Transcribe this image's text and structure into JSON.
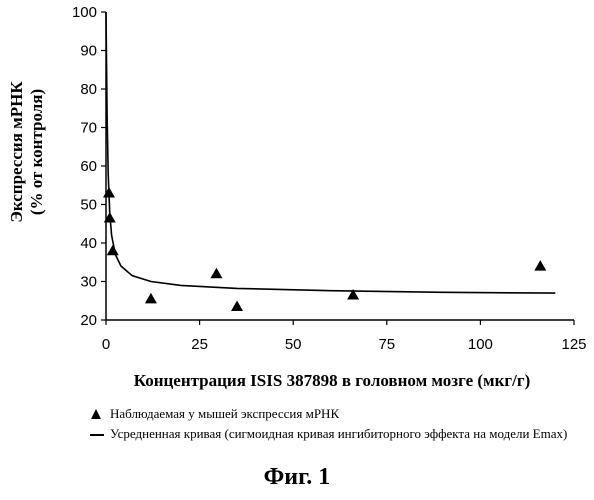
{
  "chart_data": {
    "type": "scatter",
    "xlabel": "Концентрация ISIS 387898 в головном мозге (мкг/г)",
    "ylabel_line1": "Экспрессия мРНК",
    "ylabel_line2": "(% от контроля)",
    "xlim": [
      0,
      125
    ],
    "ylim": [
      20,
      100
    ],
    "x_ticks": [
      "0",
      "25",
      "50",
      "75",
      "100",
      "125"
    ],
    "y_ticks": [
      "20",
      "30",
      "40",
      "50",
      "60",
      "70",
      "80",
      "90",
      "100"
    ],
    "grid": false,
    "series": [
      {
        "name": "Наблюдаемая у мышей экспрессия мРНК",
        "type": "scatter",
        "marker": "triangle",
        "points": [
          {
            "x": 0.8,
            "y": 53
          },
          {
            "x": 1.0,
            "y": 46.5
          },
          {
            "x": 1.8,
            "y": 38
          },
          {
            "x": 12,
            "y": 25.5
          },
          {
            "x": 29.5,
            "y": 32
          },
          {
            "x": 35,
            "y": 23.5
          },
          {
            "x": 66,
            "y": 26.5
          },
          {
            "x": 116,
            "y": 34
          }
        ]
      },
      {
        "name": "Усредненная кривая (сигмоидная кривая ингибиторного эффекта на модели Emax)",
        "type": "line",
        "points": [
          {
            "x": 0,
            "y": 100
          },
          {
            "x": 0.1,
            "y": 90
          },
          {
            "x": 0.3,
            "y": 73
          },
          {
            "x": 0.6,
            "y": 58
          },
          {
            "x": 1,
            "y": 48
          },
          {
            "x": 1.5,
            "y": 42
          },
          {
            "x": 2.5,
            "y": 37
          },
          {
            "x": 4,
            "y": 34
          },
          {
            "x": 7,
            "y": 31.5
          },
          {
            "x": 12,
            "y": 30
          },
          {
            "x": 20,
            "y": 29
          },
          {
            "x": 35,
            "y": 28.2
          },
          {
            "x": 60,
            "y": 27.6
          },
          {
            "x": 90,
            "y": 27.2
          },
          {
            "x": 120,
            "y": 27
          }
        ]
      }
    ]
  },
  "legend": {
    "scatter_label": "Наблюдаемая у мышей экспрессия мРНК",
    "line_label": "Усредненная кривая (сигмоидная кривая ингибиторного эффекта на модели Emax)"
  },
  "caption": "Фиг. 1"
}
